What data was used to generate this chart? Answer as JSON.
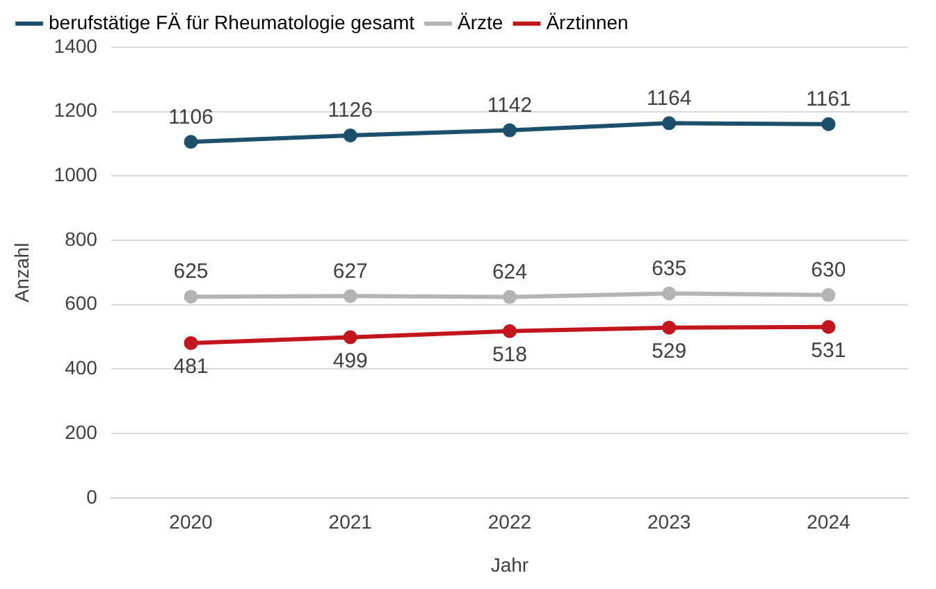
{
  "chart_data": {
    "type": "line",
    "xlabel": "Jahr",
    "ylabel": "Anzahl",
    "categories": [
      "2020",
      "2021",
      "2022",
      "2023",
      "2024"
    ],
    "series": [
      {
        "name": "berufstätige FÄ für Rheumatologie gesamt",
        "color": "#1b4f6b",
        "values": [
          1106,
          1126,
          1142,
          1164,
          1161
        ]
      },
      {
        "name": "Ärzte",
        "color": "#b4b4b4",
        "values": [
          625,
          627,
          624,
          635,
          630
        ]
      },
      {
        "name": "Ärztinnen",
        "color": "#c3161c",
        "values": [
          481,
          499,
          518,
          529,
          531
        ]
      }
    ],
    "ylim": [
      0,
      1400
    ],
    "yticks": [
      0,
      200,
      400,
      600,
      800,
      1000,
      1200,
      1400
    ],
    "grid": "y",
    "legend": "top left",
    "marker": "circle",
    "line_style": "solid",
    "data_labels": true
  }
}
